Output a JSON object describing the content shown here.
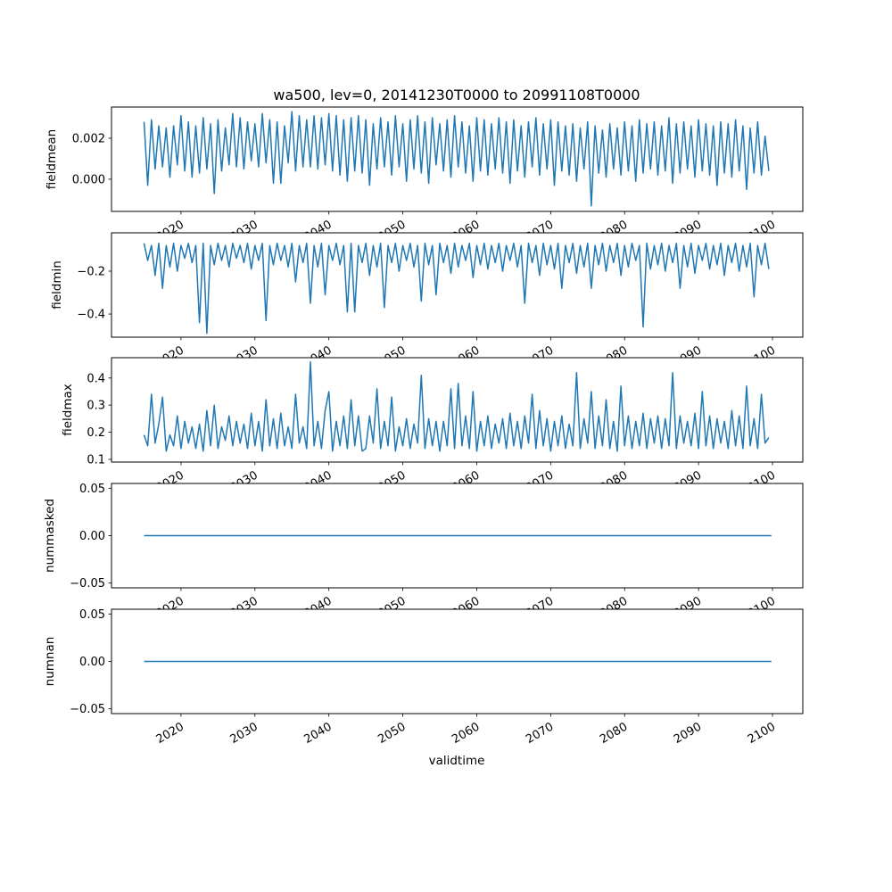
{
  "chart_data": {
    "type": "line",
    "title": "wa500, lev=0, 20141230T0000 to 20991108T0000",
    "xlabel": "validtime",
    "xlim": [
      2010.6,
      2104.1
    ],
    "x_ticks": [
      2020,
      2030,
      2040,
      2050,
      2060,
      2070,
      2080,
      2090,
      2100
    ],
    "x_tick_labels": [
      "2020",
      "2030",
      "2040",
      "2050",
      "2060",
      "2070",
      "2080",
      "2090",
      "2100"
    ],
    "color": "#1f77b4",
    "panels": [
      {
        "ylabel": "fieldmean",
        "ylim": [
          -0.00157,
          0.00352
        ],
        "y_ticks": [
          0.0,
          0.002
        ],
        "y_tick_labels": [
          "0.000",
          "0.002"
        ],
        "x_start": 2015.0,
        "x_step": 0.5,
        "values": [
          0.0028,
          -0.0003,
          0.0029,
          0.0005,
          0.0026,
          0.0006,
          0.0025,
          0.0001,
          0.0026,
          0.0007,
          0.0031,
          0.0004,
          0.0028,
          0.0001,
          0.0026,
          0.0003,
          0.003,
          0.0005,
          0.0027,
          -0.0007,
          0.0029,
          0.0004,
          0.0025,
          0.0007,
          0.0032,
          0.0006,
          0.003,
          0.0005,
          0.0028,
          0.0009,
          0.0027,
          0.0006,
          0.0032,
          0.0008,
          0.0029,
          -0.0002,
          0.0028,
          -0.0002,
          0.0026,
          0.0008,
          0.0033,
          0.0004,
          0.0031,
          0.0006,
          0.0029,
          0.0006,
          0.0031,
          0.0005,
          0.003,
          0.0007,
          0.0032,
          0.0004,
          0.0031,
          0.0002,
          0.0029,
          -0.0001,
          0.003,
          0.0004,
          0.0031,
          0.0003,
          0.0029,
          -0.0003,
          0.0027,
          0.0005,
          0.003,
          0.0006,
          0.0028,
          0.0002,
          0.0031,
          0.0006,
          0.0027,
          -0.0001,
          0.0029,
          0.0005,
          0.0031,
          0.0003,
          0.0028,
          -0.0002,
          0.003,
          0.0007,
          0.0027,
          0.0004,
          0.0029,
          0.0001,
          0.0031,
          0.0006,
          0.0028,
          0.0003,
          0.0026,
          -0.0001,
          0.003,
          0.0004,
          0.0029,
          0.0002,
          0.0027,
          0.0005,
          0.003,
          0.0003,
          0.0028,
          -0.0002,
          0.0029,
          0.0004,
          0.0026,
          0.0001,
          0.0028,
          0.0006,
          0.003,
          0.0002,
          0.0027,
          0.0005,
          0.0029,
          -0.0003,
          0.0028,
          0.0004,
          0.0026,
          0.0002,
          0.0027,
          -0.0001,
          0.0025,
          0.0005,
          0.0028,
          -0.0013,
          0.0026,
          0.0003,
          0.0024,
          0.0001,
          0.0027,
          0.0005,
          0.0025,
          0.0002,
          0.0028,
          0.0004,
          0.0026,
          -0.0001,
          0.0029,
          0.0003,
          0.0027,
          0.0005,
          0.0028,
          0.0002,
          0.0026,
          0.0004,
          0.003,
          -0.0002,
          0.0027,
          0.0003,
          0.0028,
          0.0005,
          0.0026,
          0.0001,
          0.0029,
          0.0004,
          0.0027,
          0.0002,
          0.0026,
          -0.0003,
          0.0028,
          0.0003,
          0.0027,
          0.0001,
          0.0029,
          0.0004,
          0.0026,
          -0.0005,
          0.0025,
          0.0003,
          0.0028,
          0.0002,
          0.0021,
          0.0004
        ]
      },
      {
        "ylabel": "fieldmin",
        "ylim": [
          -0.508,
          -0.021
        ],
        "y_ticks": [
          -0.4,
          -0.2
        ],
        "y_tick_labels": [
          "−0.4",
          "−0.2"
        ],
        "x_start": 2015.0,
        "x_step": 0.5,
        "values": [
          -0.07,
          -0.15,
          -0.08,
          -0.22,
          -0.07,
          -0.28,
          -0.08,
          -0.18,
          -0.07,
          -0.2,
          -0.08,
          -0.14,
          -0.07,
          -0.16,
          -0.08,
          -0.44,
          -0.07,
          -0.49,
          -0.08,
          -0.17,
          -0.07,
          -0.15,
          -0.08,
          -0.18,
          -0.07,
          -0.14,
          -0.08,
          -0.16,
          -0.07,
          -0.19,
          -0.08,
          -0.15,
          -0.07,
          -0.43,
          -0.08,
          -0.17,
          -0.07,
          -0.15,
          -0.08,
          -0.18,
          -0.07,
          -0.25,
          -0.08,
          -0.16,
          -0.07,
          -0.35,
          -0.08,
          -0.18,
          -0.07,
          -0.31,
          -0.08,
          -0.15,
          -0.07,
          -0.17,
          -0.08,
          -0.39,
          -0.07,
          -0.39,
          -0.08,
          -0.16,
          -0.07,
          -0.22,
          -0.08,
          -0.18,
          -0.07,
          -0.37,
          -0.08,
          -0.16,
          -0.07,
          -0.2,
          -0.08,
          -0.15,
          -0.07,
          -0.18,
          -0.08,
          -0.34,
          -0.07,
          -0.17,
          -0.08,
          -0.31,
          -0.07,
          -0.16,
          -0.08,
          -0.21,
          -0.07,
          -0.18,
          -0.08,
          -0.15,
          -0.07,
          -0.23,
          -0.08,
          -0.17,
          -0.07,
          -0.19,
          -0.08,
          -0.16,
          -0.07,
          -0.2,
          -0.08,
          -0.15,
          -0.07,
          -0.18,
          -0.08,
          -0.35,
          -0.07,
          -0.16,
          -0.08,
          -0.22,
          -0.07,
          -0.17,
          -0.08,
          -0.19,
          -0.07,
          -0.28,
          -0.08,
          -0.16,
          -0.07,
          -0.21,
          -0.08,
          -0.18,
          -0.07,
          -0.28,
          -0.08,
          -0.17,
          -0.07,
          -0.2,
          -0.08,
          -0.16,
          -0.07,
          -0.22,
          -0.08,
          -0.18,
          -0.07,
          -0.15,
          -0.08,
          -0.46,
          -0.07,
          -0.19,
          -0.08,
          -0.17,
          -0.07,
          -0.2,
          -0.08,
          -0.16,
          -0.07,
          -0.28,
          -0.08,
          -0.18,
          -0.07,
          -0.21,
          -0.08,
          -0.15,
          -0.07,
          -0.19,
          -0.08,
          -0.17,
          -0.07,
          -0.22,
          -0.08,
          -0.16,
          -0.07,
          -0.2,
          -0.08,
          -0.18,
          -0.07,
          -0.32,
          -0.08,
          -0.17,
          -0.07,
          -0.19
        ]
      },
      {
        "ylabel": "fieldmax",
        "ylim": [
          0.09,
          0.475
        ],
        "y_ticks": [
          0.1,
          0.2,
          0.3,
          0.4
        ],
        "y_tick_labels": [
          "0.1",
          "0.2",
          "0.3",
          "0.4"
        ],
        "x_start": 2015.0,
        "x_step": 0.5,
        "values": [
          0.19,
          0.15,
          0.34,
          0.16,
          0.23,
          0.33,
          0.13,
          0.19,
          0.15,
          0.26,
          0.14,
          0.24,
          0.16,
          0.22,
          0.14,
          0.23,
          0.13,
          0.28,
          0.15,
          0.3,
          0.14,
          0.22,
          0.17,
          0.26,
          0.15,
          0.24,
          0.16,
          0.23,
          0.14,
          0.27,
          0.15,
          0.24,
          0.13,
          0.32,
          0.15,
          0.25,
          0.14,
          0.27,
          0.15,
          0.22,
          0.14,
          0.34,
          0.16,
          0.22,
          0.14,
          0.46,
          0.15,
          0.24,
          0.14,
          0.28,
          0.35,
          0.13,
          0.24,
          0.15,
          0.26,
          0.14,
          0.32,
          0.15,
          0.26,
          0.13,
          0.14,
          0.26,
          0.16,
          0.36,
          0.14,
          0.24,
          0.15,
          0.33,
          0.13,
          0.22,
          0.15,
          0.25,
          0.14,
          0.23,
          0.16,
          0.41,
          0.14,
          0.25,
          0.15,
          0.24,
          0.13,
          0.24,
          0.15,
          0.36,
          0.14,
          0.38,
          0.15,
          0.26,
          0.14,
          0.35,
          0.13,
          0.24,
          0.15,
          0.26,
          0.14,
          0.23,
          0.16,
          0.25,
          0.14,
          0.27,
          0.15,
          0.24,
          0.14,
          0.26,
          0.16,
          0.34,
          0.14,
          0.28,
          0.15,
          0.25,
          0.13,
          0.24,
          0.15,
          0.26,
          0.14,
          0.23,
          0.15,
          0.42,
          0.14,
          0.25,
          0.16,
          0.35,
          0.14,
          0.26,
          0.15,
          0.32,
          0.14,
          0.24,
          0.13,
          0.37,
          0.15,
          0.26,
          0.14,
          0.24,
          0.15,
          0.27,
          0.14,
          0.25,
          0.16,
          0.26,
          0.14,
          0.25,
          0.15,
          0.42,
          0.14,
          0.26,
          0.16,
          0.24,
          0.15,
          0.27,
          0.14,
          0.35,
          0.15,
          0.26,
          0.14,
          0.25,
          0.16,
          0.24,
          0.14,
          0.28,
          0.15,
          0.26,
          0.14,
          0.37,
          0.15,
          0.25,
          0.14,
          0.34,
          0.16,
          0.18
        ]
      },
      {
        "ylabel": "nummasked",
        "ylim": [
          -0.055,
          0.055
        ],
        "y_ticks": [
          -0.05,
          0.0,
          0.05
        ],
        "y_tick_labels": [
          "−0.05",
          "0.00",
          "0.05"
        ],
        "x_start": 2015.0,
        "x_step": 84.85,
        "values": [
          0,
          0
        ]
      },
      {
        "ylabel": "numnan",
        "ylim": [
          -0.055,
          0.055
        ],
        "y_ticks": [
          -0.05,
          0.0,
          0.05
        ],
        "y_tick_labels": [
          "−0.05",
          "0.00",
          "0.05"
        ],
        "x_start": 2015.0,
        "x_step": 84.85,
        "values": [
          0,
          0
        ]
      }
    ]
  }
}
